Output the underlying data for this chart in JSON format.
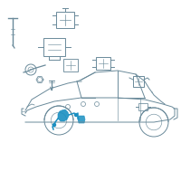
{
  "bg_color": "#ffffff",
  "car_color": "#6a8a9a",
  "sensor_color": "#1a8fc1",
  "part_color": "#6a8a9a",
  "lw": 0.7,
  "hlw": 1.1
}
